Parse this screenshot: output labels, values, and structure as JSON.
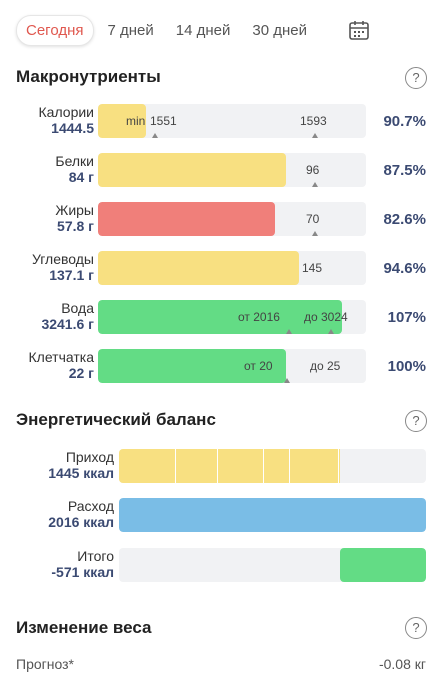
{
  "tabs": [
    {
      "label": "Сегодня",
      "active": true
    },
    {
      "label": "7 дней"
    },
    {
      "label": "14 дней"
    },
    {
      "label": "30 дней"
    }
  ],
  "sections": {
    "macros": "Макронутриенты",
    "energy": "Энергетический баланс",
    "weight": "Изменение веса"
  },
  "help_label": "?",
  "colors": {
    "yellow": "#f8e081",
    "red": "#f07f7a",
    "green": "#63dc85",
    "blue": "#7abde6",
    "accent": "#e0584f",
    "value_text": "#3b4a72"
  },
  "macros": [
    {
      "name": "Калории",
      "value": "1444.5",
      "fill_fraction": 0.18,
      "color": "yellow",
      "marks": [
        "min",
        "1551",
        "1593"
      ],
      "percent": "90.7%"
    },
    {
      "name": "Белки",
      "value": "84 г",
      "fill_fraction": 0.7,
      "color": "yellow",
      "marks": [
        "96"
      ],
      "percent": "87.5%"
    },
    {
      "name": "Жиры",
      "value": "57.8 г",
      "fill_fraction": 0.66,
      "color": "red",
      "marks": [
        "70"
      ],
      "percent": "82.6%"
    },
    {
      "name": "Углеводы",
      "value": "137.1 г",
      "fill_fraction": 0.75,
      "color": "yellow",
      "marks": [
        "145"
      ],
      "percent": "94.6%"
    },
    {
      "name": "Вода",
      "value": "3241.6 г",
      "fill_fraction": 0.91,
      "color": "green",
      "marks": [
        "от 2016",
        "до 3024"
      ],
      "percent": "107%"
    },
    {
      "name": "Клетчатка",
      "value": "22 г",
      "fill_fraction": 0.7,
      "color": "green",
      "marks": [
        "от 20",
        "до 25"
      ],
      "percent": "100%"
    }
  ],
  "energy": [
    {
      "name": "Приход",
      "value": "1445 ккал",
      "color": "yellow",
      "fill_fraction": 0.72
    },
    {
      "name": "Расход",
      "value": "2016 ккал",
      "color": "blue",
      "fill_fraction": 1.0
    },
    {
      "name": "Итого",
      "value": "-571 ккал",
      "color": "green",
      "fill_fraction": 0.28
    }
  ],
  "forecast": {
    "label": "Прогноз*",
    "value": "-0.08 кг"
  }
}
